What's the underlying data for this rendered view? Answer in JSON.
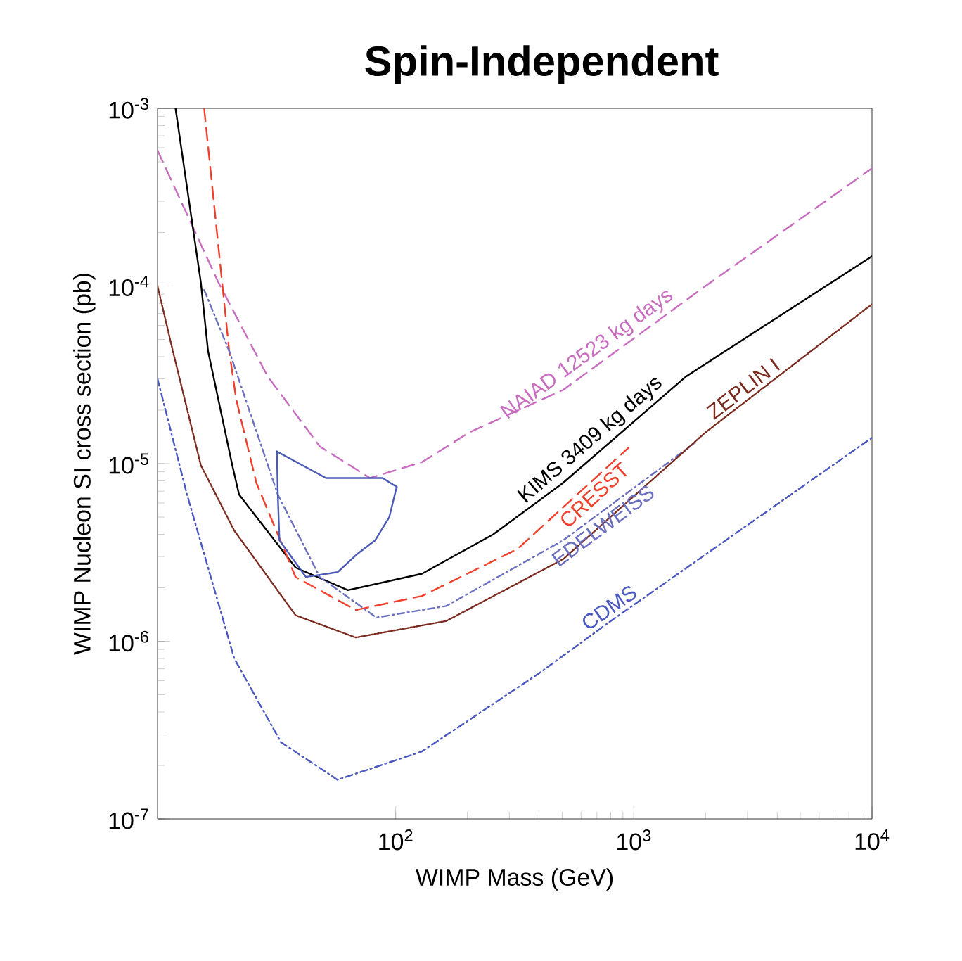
{
  "chart_data": {
    "type": "line",
    "title": "Spin-Independent",
    "xlabel": "WIMP Mass (GeV)",
    "ylabel": "WIMP Nucleon SI cross section (pb)",
    "log": "xy",
    "grid": false,
    "marker": "none",
    "xlim": [
      10,
      10000
    ],
    "ylim": [
      1e-07,
      0.001
    ],
    "xticks": [
      {
        "value": 100,
        "label": "10$^{2}$"
      },
      {
        "value": 1000,
        "label": "10$^{3}$"
      },
      {
        "value": 10000,
        "label": "10$^{4}$"
      }
    ],
    "yticks": [
      {
        "value": 1e-07,
        "label": "10$^{-7}$"
      },
      {
        "value": 1e-06,
        "label": "10$^{-6}$"
      },
      {
        "value": 1e-05,
        "label": "10$^{-5}$"
      },
      {
        "value": 0.0001,
        "label": "10$^{-4}$"
      },
      {
        "value": 0.001,
        "label": "10$^{-3}$"
      }
    ],
    "series": [
      {
        "name": "NAIAD 12523 kg days",
        "color": "#c86dc0",
        "line_style": "dashed",
        "x": [
          10,
          18,
          29,
          48,
          78,
          129,
          204,
          505,
          2000,
          10000
        ],
        "values": [
          0.00058,
          0.000105,
          3.1e-05,
          1.25e-05,
          8.3e-06,
          1.02e-05,
          1.5e-05,
          2.6e-05,
          0.0001,
          0.00046
        ]
      },
      {
        "name": "KIMS 3409 kg days",
        "color": "#000000",
        "line_style": "solid",
        "x": [
          11.9,
          15.2,
          16.3,
          20.6,
          22,
          38,
          63,
          129,
          257,
          505,
          1660,
          3900,
          10000
        ],
        "values": [
          0.001,
          0.000105,
          4.3e-05,
          9.8e-06,
          6.7e-06,
          2.6e-06,
          1.94e-06,
          2.4e-06,
          4e-06,
          7.8e-06,
          3.1e-05,
          6.5e-05,
          0.000147
        ]
      },
      {
        "name": "CRESST",
        "color": "#f0402c",
        "line_style": "dashed",
        "x": [
          15.7,
          20,
          21.4,
          26,
          38,
          68,
          129,
          324,
          950
        ],
        "values": [
          0.001,
          4.3e-05,
          2.3e-05,
          7.8e-06,
          2.3e-06,
          1.5e-06,
          1.8e-06,
          3.3e-06,
          1.23e-05
        ]
      },
      {
        "name": "EDELWEISS",
        "color": "#6a6fc0",
        "line_style": "dashdotted",
        "x": [
          15.7,
          20,
          32,
          48,
          83,
          163,
          505,
          1790
        ],
        "values": [
          9.5e-05,
          4.3e-05,
          6.7e-06,
          2.3e-06,
          1.36e-06,
          1.58e-06,
          3.7e-06,
          1.3e-05
        ]
      },
      {
        "name": "ZEPLIN I",
        "color": "#7a2a1e",
        "line_style": "dotted",
        "x": [
          10,
          11.6,
          15.2,
          21,
          38,
          68,
          163,
          505,
          2000,
          10000
        ],
        "values": [
          0.0001,
          4.3e-05,
          9.8e-06,
          4.2e-06,
          1.4e-06,
          1.05e-06,
          1.3e-06,
          2.9e-06,
          1.5e-05,
          7.9e-05
        ]
      },
      {
        "name": "CDMS",
        "color": "#4a58c0",
        "line_style": "dashdotted",
        "x": [
          10,
          13.3,
          21,
          33,
          57,
          129,
          400,
          800,
          10000
        ],
        "values": [
          3e-05,
          6.7e-06,
          8e-07,
          2.7e-07,
          1.66e-07,
          2.4e-07,
          6.6e-07,
          1.3e-06,
          1.4e-05
        ]
      },
      {
        "color": "#4b5bb5",
        "line_style": "solid",
        "x": [
          31.7,
          51,
          88,
          101
        ],
        "values": [
          1.17e-05,
          8.3e-06,
          8.3e-06,
          7.4e-06
        ]
      },
      {
        "color": "#4b5bb5",
        "line_style": "solid",
        "x": [
          31.7,
          32,
          32.5,
          42,
          57,
          69,
          82,
          94,
          101
        ],
        "values": [
          1.17e-05,
          6.7e-06,
          3.7e-06,
          2.3e-06,
          2.45e-06,
          3.1e-06,
          3.7e-06,
          5e-06,
          7.4e-06
        ]
      }
    ]
  }
}
